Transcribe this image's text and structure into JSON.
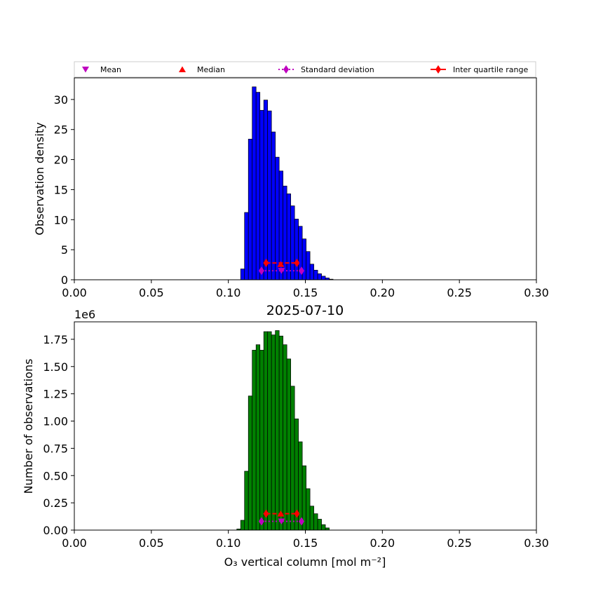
{
  "legend": {
    "placement": "top, above upper panel",
    "items": [
      {
        "label": "Mean",
        "marker": "triangle-down",
        "color": "#bf00bf"
      },
      {
        "label": "Median",
        "marker": "triangle-up",
        "color": "#ff0000"
      },
      {
        "label": "Standard deviation",
        "marker": "diamond-dotted-line",
        "color": "#bf00bf"
      },
      {
        "label": "Inter quartile range",
        "marker": "diamond-dashed-line",
        "color": "#ff0000"
      }
    ]
  },
  "chart_data": [
    {
      "type": "bar",
      "ylabel": "Observation density",
      "xlim": [
        0,
        0.3
      ],
      "ylim": [
        0,
        33.6
      ],
      "xticks": [
        "0.00",
        "0.05",
        "0.10",
        "0.15",
        "0.20",
        "0.25",
        "0.30"
      ],
      "yticks": [
        "0",
        "5",
        "10",
        "15",
        "20",
        "25",
        "30"
      ],
      "bar_color": "#0000ff",
      "bin_start": 0.108,
      "bin_width": 0.0025,
      "values": [
        1.8,
        11.2,
        23.4,
        32.1,
        31.2,
        28.2,
        29.9,
        28.1,
        24.6,
        20.4,
        18.1,
        15.6,
        14.3,
        12.3,
        10.1,
        8.9,
        6.8,
        4.7,
        2.6,
        1.6,
        1.0,
        0.6,
        0.3,
        0.1
      ],
      "stats": {
        "mean": 0.1345,
        "median": 0.134,
        "std_range": [
          0.1215,
          0.1475
        ],
        "std_y": 1.5,
        "iqr_range": [
          0.1245,
          0.1445
        ],
        "iqr_y": 2.8,
        "median_y": 2.6
      },
      "grid": false
    },
    {
      "type": "bar",
      "title": "2025-07-10",
      "xlabel": "O₃ vertical column [mol m⁻²]",
      "ylabel": "Number of observations",
      "offset_label": "1e6",
      "xlim": [
        0,
        0.3
      ],
      "ylim": [
        0,
        1.91
      ],
      "xticks": [
        "0.00",
        "0.05",
        "0.10",
        "0.15",
        "0.20",
        "0.25",
        "0.30"
      ],
      "yticks": [
        "0.00",
        "0.25",
        "0.50",
        "0.75",
        "1.00",
        "1.25",
        "1.50",
        "1.75"
      ],
      "bar_color": "#008000",
      "bin_start": 0.1055,
      "bin_width": 0.0025,
      "values": [
        0.01,
        0.09,
        0.54,
        1.23,
        1.65,
        1.7,
        1.65,
        1.82,
        1.82,
        1.79,
        1.83,
        1.78,
        1.7,
        1.57,
        1.32,
        1.02,
        0.81,
        0.59,
        0.38,
        0.22,
        0.15,
        0.1,
        0.05,
        0.02
      ],
      "stats": {
        "mean": 0.1345,
        "median": 0.134,
        "std_range": [
          0.1215,
          0.1475
        ],
        "std_y": 0.08,
        "iqr_range": [
          0.1245,
          0.1445
        ],
        "iqr_y": 0.15,
        "median_y": 0.15
      },
      "grid": false
    }
  ]
}
